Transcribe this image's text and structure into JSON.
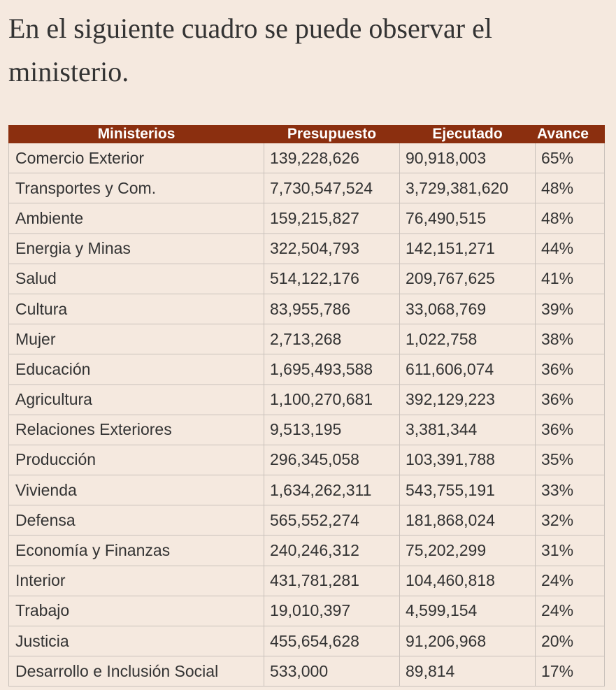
{
  "intro": {
    "line1": "En el siguiente cuadro se puede observar el",
    "line2": "ministerio."
  },
  "table": {
    "headers": {
      "ministerios": "Ministerios",
      "presupuesto": "Presupuesto",
      "ejecutado": "Ejecutado",
      "avance": "Avance"
    },
    "rows": [
      {
        "ministerio": "Comercio Exterior",
        "presupuesto": "139,228,626",
        "ejecutado": "90,918,003",
        "avance": "65%"
      },
      {
        "ministerio": "Transportes y Com.",
        "presupuesto": "7,730,547,524",
        "ejecutado": "3,729,381,620",
        "avance": "48%"
      },
      {
        "ministerio": "Ambiente",
        "presupuesto": "159,215,827",
        "ejecutado": "76,490,515",
        "avance": "48%"
      },
      {
        "ministerio": "Energia y Minas",
        "presupuesto": "322,504,793",
        "ejecutado": "142,151,271",
        "avance": "44%"
      },
      {
        "ministerio": "Salud",
        "presupuesto": "514,122,176",
        "ejecutado": "209,767,625",
        "avance": "41%"
      },
      {
        "ministerio": "Cultura",
        "presupuesto": "83,955,786",
        "ejecutado": "33,068,769",
        "avance": "39%"
      },
      {
        "ministerio": "Mujer",
        "presupuesto": "2,713,268",
        "ejecutado": "1,022,758",
        "avance": "38%"
      },
      {
        "ministerio": "Educación",
        "presupuesto": "1,695,493,588",
        "ejecutado": "611,606,074",
        "avance": "36%"
      },
      {
        "ministerio": "Agricultura",
        "presupuesto": "1,100,270,681",
        "ejecutado": "392,129,223",
        "avance": "36%"
      },
      {
        "ministerio": "Relaciones Exteriores",
        "presupuesto": "9,513,195",
        "ejecutado": "3,381,344",
        "avance": "36%"
      },
      {
        "ministerio": "Producción",
        "presupuesto": "296,345,058",
        "ejecutado": "103,391,788",
        "avance": "35%"
      },
      {
        "ministerio": "Vivienda",
        "presupuesto": "1,634,262,311",
        "ejecutado": "543,755,191",
        "avance": "33%"
      },
      {
        "ministerio": "Defensa",
        "presupuesto": "565,552,274",
        "ejecutado": "181,868,024",
        "avance": "32%"
      },
      {
        "ministerio": "Economía y Finanzas",
        "presupuesto": "240,246,312",
        "ejecutado": "75,202,299",
        "avance": "31%"
      },
      {
        "ministerio": "Interior",
        "presupuesto": "431,781,281",
        "ejecutado": "104,460,818",
        "avance": "24%"
      },
      {
        "ministerio": "Trabajo",
        "presupuesto": "19,010,397",
        "ejecutado": "4,599,154",
        "avance": "24%"
      },
      {
        "ministerio": "Justicia",
        "presupuesto": "455,654,628",
        "ejecutado": "91,206,968",
        "avance": "20%"
      },
      {
        "ministerio": "Desarrollo e Inclusión Social",
        "presupuesto": "533,000",
        "ejecutado": "89,814",
        "avance": "17%"
      }
    ]
  }
}
